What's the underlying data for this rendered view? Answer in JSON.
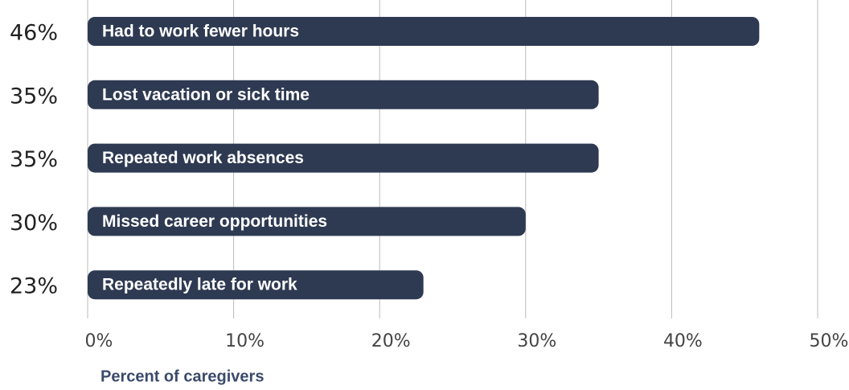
{
  "chart_data": {
    "type": "bar",
    "orientation": "horizontal",
    "categories": [
      "Had to work fewer hours",
      "Lost vacation or sick time",
      "Repeated work absences",
      "Missed career opportunities",
      "Repeatedly late for work"
    ],
    "values": [
      46,
      35,
      35,
      30,
      23
    ],
    "value_labels": [
      "46%",
      "35%",
      "35%",
      "30%",
      "23%"
    ],
    "color": "#2e3a52",
    "xlim": [
      0,
      50
    ],
    "xticks": [
      {
        "value": 0,
        "label": "0%"
      },
      {
        "value": 10,
        "label": "10%"
      },
      {
        "value": 20,
        "label": "20%"
      },
      {
        "value": 30,
        "label": "30%"
      },
      {
        "value": 40,
        "label": "40%"
      },
      {
        "value": 50,
        "label": "50%"
      }
    ],
    "x_label": "Percent of caregivers",
    "grid": true
  }
}
